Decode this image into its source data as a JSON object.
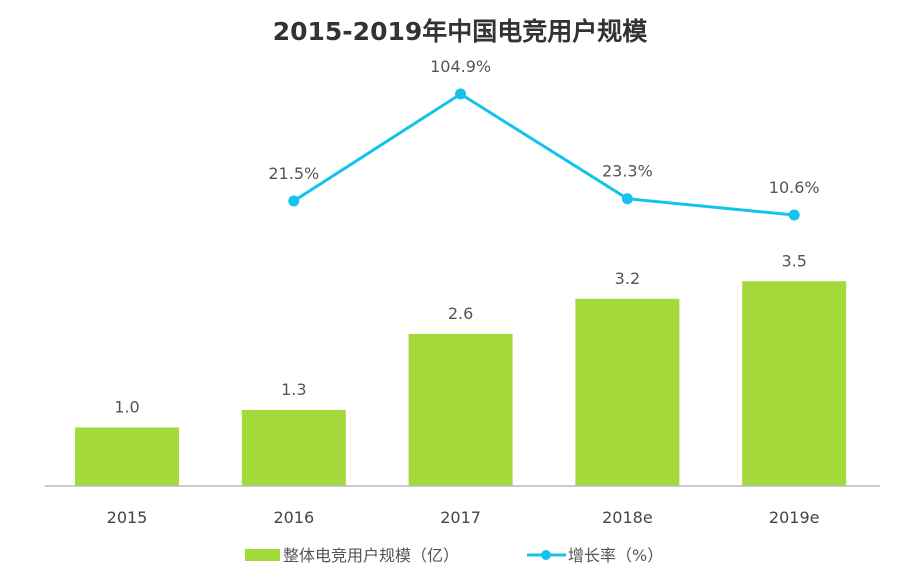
{
  "chart_data": {
    "type": "bar+line",
    "title": "2015-2019年中国电竞用户规模",
    "categories": [
      "2015",
      "2016",
      "2017",
      "2018e",
      "2019e"
    ],
    "series": [
      {
        "name": "整体电竞用户规模（亿）",
        "type": "bar",
        "values": [
          1.0,
          1.3,
          2.6,
          3.2,
          3.5
        ],
        "labels": [
          "1.0",
          "1.3",
          "2.6",
          "3.2",
          "3.5"
        ],
        "color": "#a3d93a"
      },
      {
        "name": "增长率（%）",
        "type": "line",
        "values": [
          null,
          21.5,
          104.9,
          23.3,
          10.6
        ],
        "labels": [
          "",
          "21.5%",
          "104.9%",
          "23.3%",
          "10.6%"
        ],
        "color": "#14c3ec"
      }
    ],
    "legend": "bottom",
    "grid": false
  }
}
